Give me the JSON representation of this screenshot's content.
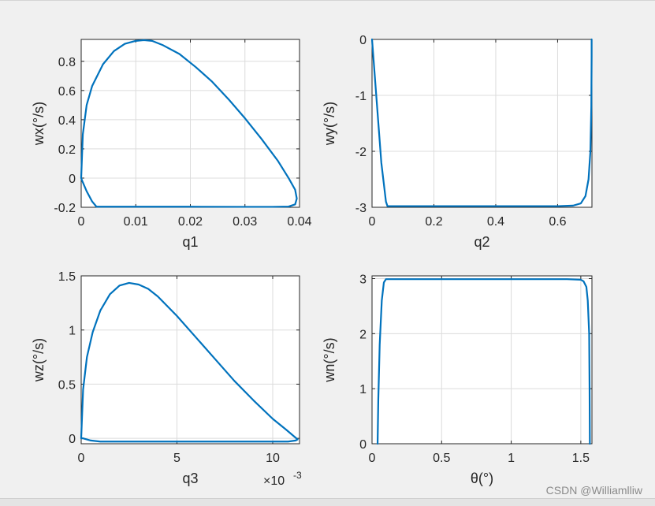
{
  "watermark": "CSDN @Williamlliw",
  "colors": {
    "line": "#0072bd",
    "grid": "#dcdcdc",
    "axis": "#262626",
    "plot_bg": "#ffffff",
    "figure_bg": "#f0f0f0"
  },
  "chart_data": [
    {
      "type": "line",
      "xlabel": "q1",
      "ylabel": "wx(°/s)",
      "xlim": [
        0,
        0.04
      ],
      "ylim": [
        -0.2,
        0.95
      ],
      "xticks": [
        0,
        0.01,
        0.02,
        0.03,
        0.04
      ],
      "xticklabels": [
        "0",
        "0.01",
        "0.02",
        "0.03",
        "0.04"
      ],
      "yticks": [
        -0.2,
        0,
        0.2,
        0.4,
        0.6,
        0.8
      ],
      "yticklabels": [
        "-0.2",
        "0",
        "0.2",
        "0.4",
        "0.6",
        "0.8"
      ],
      "exponent_label": "",
      "grid": true,
      "x": [
        0,
        0.0003,
        0.001,
        0.002,
        0.004,
        0.006,
        0.008,
        0.01,
        0.0115,
        0.013,
        0.015,
        0.018,
        0.021,
        0.024,
        0.027,
        0.03,
        0.033,
        0.036,
        0.038,
        0.0392,
        0.0395,
        0.0392,
        0.038,
        0.035,
        0.03,
        0.02,
        0.01,
        0.005,
        0.0028,
        0.002,
        0.001,
        0.0002,
        0
      ],
      "y": [
        0,
        0.3,
        0.5,
        0.63,
        0.78,
        0.87,
        0.92,
        0.94,
        0.945,
        0.94,
        0.91,
        0.85,
        0.76,
        0.66,
        0.54,
        0.41,
        0.27,
        0.12,
        0.0,
        -0.08,
        -0.14,
        -0.18,
        -0.195,
        -0.197,
        -0.197,
        -0.196,
        -0.196,
        -0.196,
        -0.196,
        -0.16,
        -0.09,
        -0.02,
        0
      ]
    },
    {
      "type": "line",
      "xlabel": "q2",
      "ylabel": "wy(°/s)",
      "xlim": [
        0,
        0.711
      ],
      "ylim": [
        -3,
        0
      ],
      "xticks": [
        0,
        0.2,
        0.4,
        0.6
      ],
      "xticklabels": [
        "0",
        "0.2",
        "0.4",
        "0.6"
      ],
      "yticks": [
        -3,
        -2,
        -1,
        0
      ],
      "yticklabels": [
        "-3",
        "-2",
        "-1",
        "0"
      ],
      "exponent_label": "",
      "grid": true,
      "x": [
        0,
        0.03,
        0.045,
        0.05,
        0.1,
        0.2,
        0.3,
        0.4,
        0.5,
        0.6,
        0.65,
        0.675,
        0.69,
        0.7,
        0.706,
        0.709,
        0.71,
        0.71
      ],
      "y": [
        0,
        -2.2,
        -2.9,
        -2.98,
        -2.98,
        -2.98,
        -2.98,
        -2.98,
        -2.98,
        -2.98,
        -2.97,
        -2.93,
        -2.8,
        -2.5,
        -2.0,
        -1.2,
        -0.3,
        0
      ]
    },
    {
      "type": "line",
      "xlabel": "q3",
      "ylabel": "wz(°/s)",
      "xlim": [
        0,
        0.0114
      ],
      "ylim": [
        -0.05,
        1.5
      ],
      "xticks": [
        0,
        0.005,
        0.01
      ],
      "xticklabels": [
        "0",
        "5",
        "10"
      ],
      "yticks": [
        0,
        0.5,
        1,
        1.5
      ],
      "yticklabels": [
        "0",
        "0.5",
        "1",
        "1.5"
      ],
      "exponent_label": "×10",
      "exponent_power": "-3",
      "grid": true,
      "x": [
        0,
        0.0001,
        0.0003,
        0.0006,
        0.001,
        0.0015,
        0.002,
        0.0025,
        0.003,
        0.0035,
        0.004,
        0.005,
        0.006,
        0.007,
        0.008,
        0.009,
        0.01,
        0.0107,
        0.0111,
        0.0113,
        0.0112,
        0.0108,
        0.009,
        0.006,
        0.003,
        0.001,
        0.0005,
        0.0001,
        0
      ],
      "y": [
        0,
        0.45,
        0.75,
        0.98,
        1.18,
        1.33,
        1.41,
        1.435,
        1.42,
        1.38,
        1.31,
        1.13,
        0.93,
        0.73,
        0.53,
        0.35,
        0.18,
        0.08,
        0.02,
        -0.01,
        -0.02,
        -0.03,
        -0.03,
        -0.03,
        -0.03,
        -0.03,
        -0.02,
        0.0,
        0
      ]
    },
    {
      "type": "line",
      "xlabel": "θ(°)",
      "ylabel": "wn(°/s)",
      "xlim": [
        0,
        1.58
      ],
      "ylim": [
        0,
        3.05
      ],
      "xticks": [
        0,
        0.5,
        1,
        1.5
      ],
      "xticklabels": [
        "0",
        "0.5",
        "1",
        "1.5"
      ],
      "yticks": [
        0,
        1,
        2,
        3
      ],
      "yticklabels": [
        "0",
        "1",
        "2",
        "3"
      ],
      "exponent_label": "",
      "grid": true,
      "x": [
        0.04,
        0.045,
        0.055,
        0.07,
        0.085,
        0.1,
        0.2,
        0.5,
        1.0,
        1.4,
        1.5,
        1.52,
        1.54,
        1.55,
        1.56,
        1.563,
        1.565
      ],
      "y": [
        0,
        0.8,
        1.8,
        2.6,
        2.93,
        2.99,
        2.99,
        2.99,
        2.99,
        2.99,
        2.98,
        2.95,
        2.85,
        2.6,
        2.0,
        1.0,
        0
      ]
    }
  ]
}
